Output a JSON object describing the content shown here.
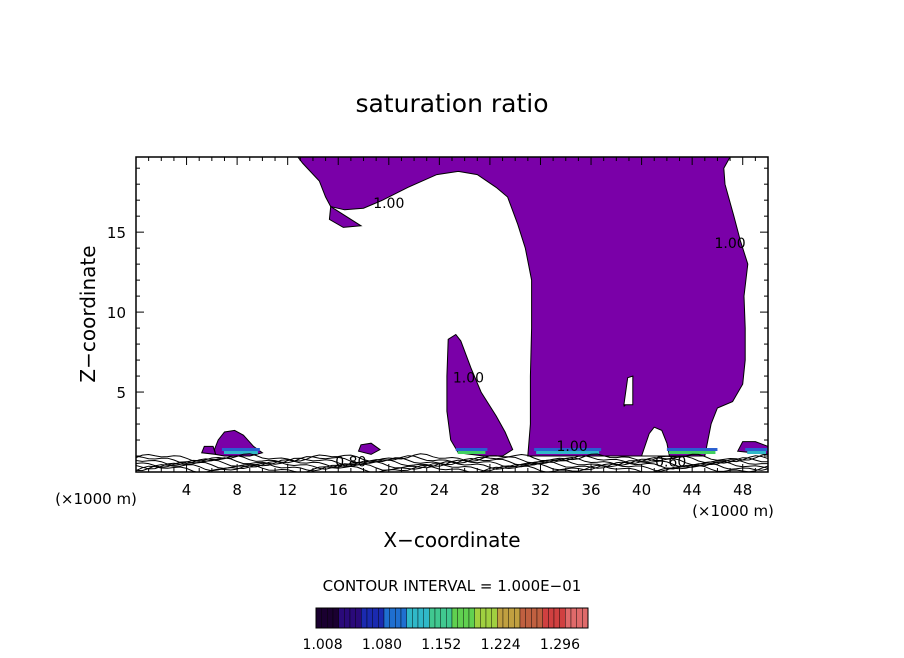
{
  "chart_data": {
    "type": "contour",
    "title": "saturation ratio",
    "xlabel": "X−coordinate",
    "ylabel": "Z−coordinate",
    "x_unit": "(×1000 m)",
    "y_unit": "(×1000 m)",
    "xlim": [
      0,
      50
    ],
    "ylim": [
      0,
      19.7
    ],
    "x_ticks": [
      4,
      8,
      12,
      16,
      20,
      24,
      28,
      32,
      36,
      40,
      44,
      48
    ],
    "y_ticks": [
      5,
      10,
      15
    ],
    "contour_interval_text": "CONTOUR INTERVAL = 1.000E−01",
    "contour_labels": [
      {
        "text": "1.00",
        "x": 20.0,
        "y": 16.5
      },
      {
        "text": "1.00",
        "x": 47.0,
        "y": 14.0
      },
      {
        "text": "1.00",
        "x": 26.3,
        "y": 5.6
      },
      {
        "text": "1.00",
        "x": 34.5,
        "y": 1.3
      },
      {
        "text": "0.80",
        "x": 17.0,
        "y": 0.35
      },
      {
        "text": "0.60",
        "x": 42.3,
        "y": 0.35
      }
    ],
    "colorbar": {
      "tick_labels": [
        "1.008",
        "1.080",
        "1.152",
        "1.224",
        "1.296"
      ],
      "range": [
        1.0,
        1.33
      ],
      "colors": [
        "#1a0030",
        "#2a0a7a",
        "#1a2ab0",
        "#1f6fd0",
        "#30b8c8",
        "#40c890",
        "#60d050",
        "#a0d040",
        "#c0a040",
        "#c06040",
        "#d04040",
        "#e06a6a"
      ]
    },
    "fill_color": "#7a00a8",
    "fill_colors_near_ground": [
      "#2a60d0",
      "#30b8c8",
      "#40d060"
    ],
    "grid": false
  }
}
